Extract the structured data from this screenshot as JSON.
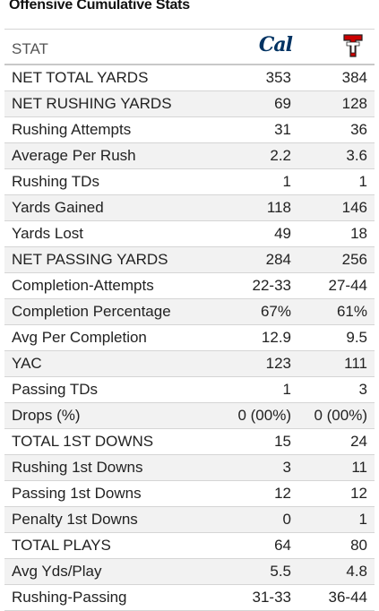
{
  "title": "Offensive Cumulative Stats",
  "header": {
    "stat_label": "STAT",
    "team_a": {
      "logo_text": "Cal",
      "logo_icon": "cal-logo-icon",
      "color": "#003262"
    },
    "team_b": {
      "logo_icon": "texas-tech-logo-icon",
      "color": "#cc0000"
    }
  },
  "rows": [
    {
      "stat": "NET TOTAL YARDS",
      "a": "353",
      "b": "384"
    },
    {
      "stat": "NET RUSHING YARDS",
      "a": "69",
      "b": "128"
    },
    {
      "stat": "Rushing Attempts",
      "a": "31",
      "b": "36"
    },
    {
      "stat": "Average Per Rush",
      "a": "2.2",
      "b": "3.6"
    },
    {
      "stat": "Rushing TDs",
      "a": "1",
      "b": "1"
    },
    {
      "stat": "Yards Gained",
      "a": "118",
      "b": "146"
    },
    {
      "stat": "Yards Lost",
      "a": "49",
      "b": "18"
    },
    {
      "stat": "NET PASSING YARDS",
      "a": "284",
      "b": "256"
    },
    {
      "stat": "Completion-Attempts",
      "a": "22-33",
      "b": "27-44"
    },
    {
      "stat": "Completion Percentage",
      "a": "67%",
      "b": "61%"
    },
    {
      "stat": "Avg Per Completion",
      "a": "12.9",
      "b": "9.5"
    },
    {
      "stat": "YAC",
      "a": "123",
      "b": "111"
    },
    {
      "stat": "Passing TDs",
      "a": "1",
      "b": "3"
    },
    {
      "stat": "Drops (%)",
      "a": "0 (00%)",
      "b": "0 (00%)"
    },
    {
      "stat": "TOTAL 1ST DOWNS",
      "a": "15",
      "b": "24"
    },
    {
      "stat": "Rushing 1st Downs",
      "a": "3",
      "b": "11"
    },
    {
      "stat": "Passing 1st Downs",
      "a": "12",
      "b": "12"
    },
    {
      "stat": "Penalty 1st Downs",
      "a": "0",
      "b": "1"
    },
    {
      "stat": "TOTAL PLAYS",
      "a": "64",
      "b": "80"
    },
    {
      "stat": "Avg Yds/Play",
      "a": "5.5",
      "b": "4.8"
    },
    {
      "stat": "Rushing-Passing",
      "a": "31-33",
      "b": "36-44"
    }
  ]
}
